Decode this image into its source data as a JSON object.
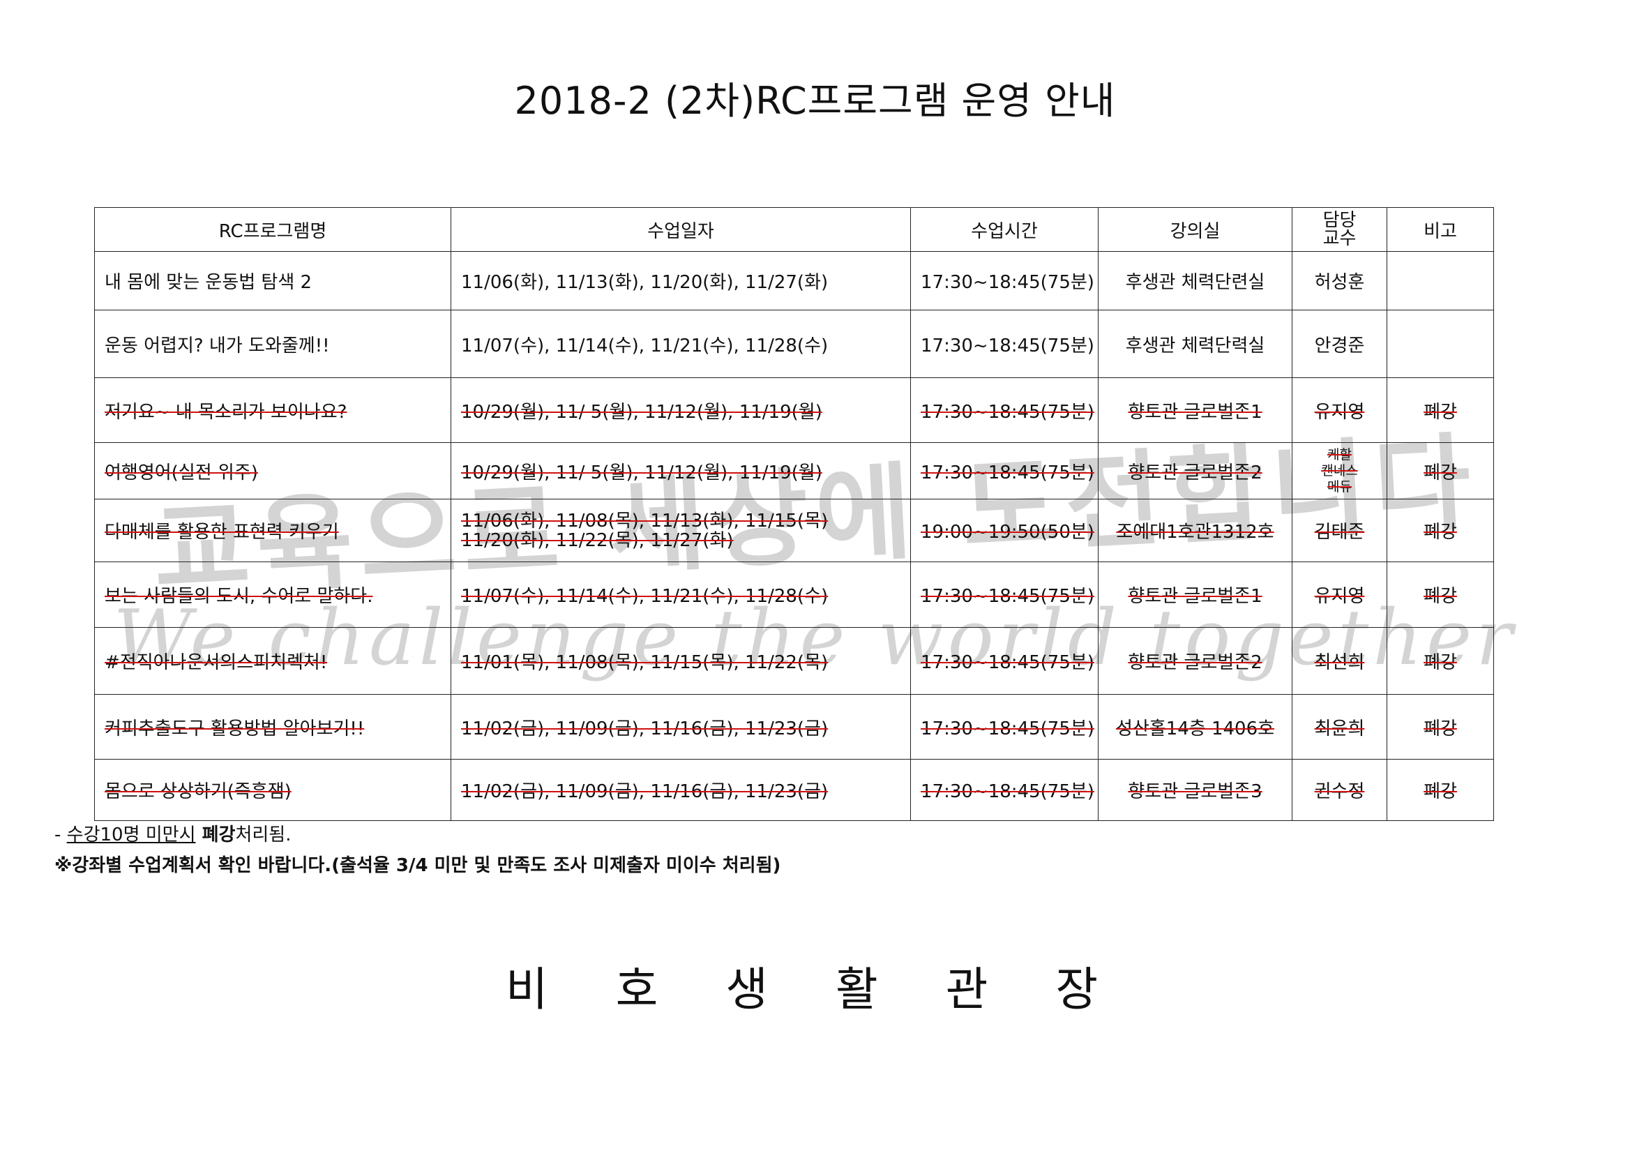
{
  "title": "2018-2 (2차)RC프로그램 운영 안내",
  "watermark": {
    "line1": "교육으로 세상에 도전합니다",
    "line2": "We challenge the world together",
    "color": "#d4d4d4"
  },
  "strike_color": "#d01010",
  "table": {
    "headers": [
      "RC프로그램명",
      "수업일자",
      "수업시간",
      "강의실",
      "담당\n교수",
      "비고"
    ],
    "header_prof_lines": [
      "담당",
      "교수"
    ],
    "rows": [
      {
        "name": "내 몸에 맞는 운동법 탐색 2",
        "dates": "11/06(화), 11/13(화), 11/20(화), 11/27(화)",
        "time": "17:30~18:45(75분)",
        "room": "후생관 체력단련실",
        "prof": "허성훈",
        "note": "",
        "cancelled": false
      },
      {
        "name": "운동 어렵지? 내가 도와줄께!!",
        "dates": "11/07(수), 11/14(수), 11/21(수), 11/28(수)",
        "time": "17:30~18:45(75분)",
        "room": "후생관 체력단력실",
        "prof": "안경준",
        "note": "",
        "cancelled": false
      },
      {
        "name": "저기요~ 내 목소리가 보이나요?",
        "dates": "10/29(월), 11/ 5(월), 11/12(월), 11/19(월)",
        "time": "17:30~18:45(75분)",
        "room": "향토관 글로벌존1",
        "prof": "유지영",
        "note": "폐강",
        "cancelled": true
      },
      {
        "name": "여행영어(실전 위주)",
        "dates": "10/29(월), 11/ 5(월), 11/12(월), 11/19(월)",
        "time": "17:30~18:45(75분)",
        "room": "향토관 글로벌존2",
        "prof_lines": [
          "케할",
          "캔네스",
          "메듀"
        ],
        "note": "폐강",
        "cancelled": true
      },
      {
        "name": "다매체를 활용한 표현력 키우기",
        "dates_lines": [
          "11/06(화), 11/08(목), 11/13(화), 11/15(목)",
          "11/20(화), 11/22(목), 11/27(화)"
        ],
        "time": "19:00~19:50(50분)",
        "room": "조예대1호관1312호",
        "prof": "김태준",
        "note": "폐강",
        "cancelled": true
      },
      {
        "name": "보는 사람들의 도시, 수어로 말하다.",
        "dates": "11/07(수), 11/14(수), 11/21(수), 11/28(수)",
        "time": "17:30~18:45(75분)",
        "room": "향토관 글로벌존1",
        "prof": "유지영",
        "note": "폐강",
        "cancelled": true
      },
      {
        "name": "#전직아나운서의스피치렉처!",
        "dates": "11/01(목), 11/08(목), 11/15(목), 11/22(목)",
        "time": "17:30~18:45(75분)",
        "room": "향토관 글로벌존2",
        "prof": "최선희",
        "note": "폐강",
        "cancelled": true
      },
      {
        "name": "커피추출도구 활용방법 알아보기!!",
        "dates": "11/02(금), 11/09(금), 11/16(금), 11/23(금)",
        "time": "17:30~18:45(75분)",
        "room": "성산홀14층 1406호",
        "prof": "최윤희",
        "note": "폐강",
        "cancelled": true
      },
      {
        "name": "몸으로 상상하기(즉흥잼)",
        "dates": "11/02(금), 11/09(금), 11/16(금), 11/23(금)",
        "time": "17:30~18:45(75분)",
        "room": "향토관 글로벌존3",
        "prof": "권수정",
        "note": "폐강",
        "cancelled": true
      }
    ]
  },
  "notes": {
    "line1_prefix": "- ",
    "line1_underlined": "수강10명 미만시",
    "line1_bold": " 폐강",
    "line1_suffix": "처리됨.",
    "line2": "※강좌별 수업계획서 확인 바랍니다.(출석율 3/4 미만 및 만족도 조사 미제출자 미이수 처리됨)"
  },
  "signature": "비 호 생 활 관 장"
}
